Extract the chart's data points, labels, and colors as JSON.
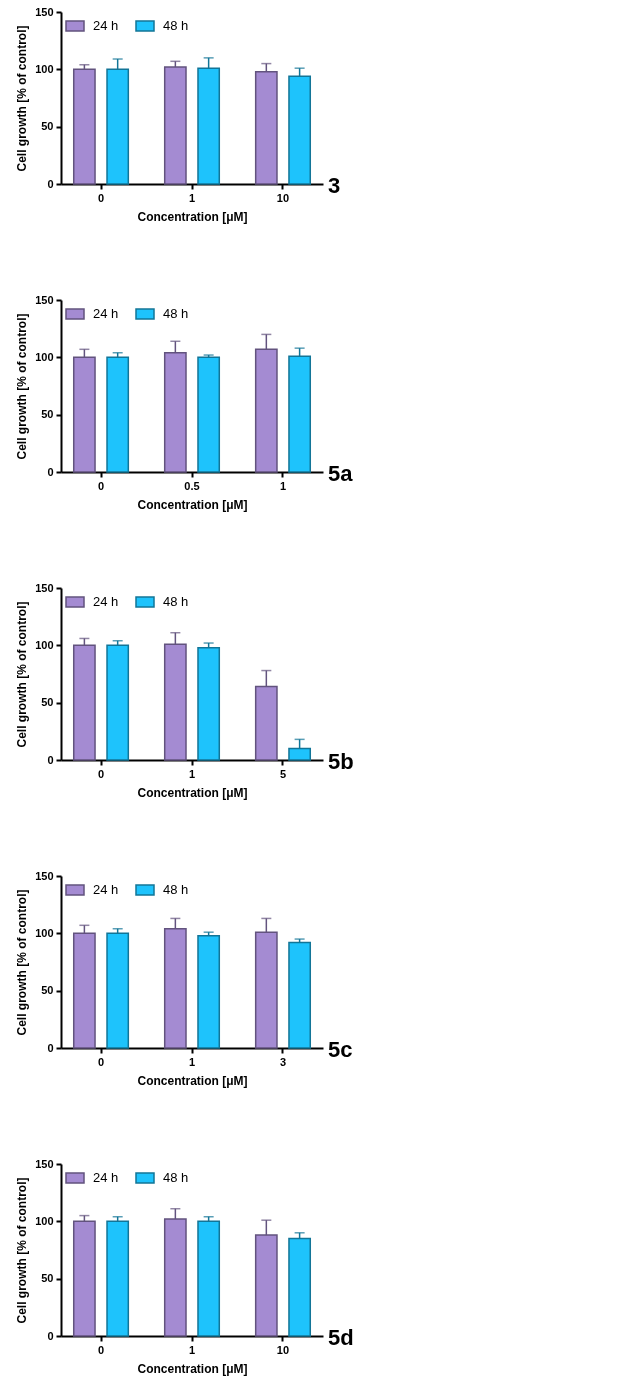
{
  "chart_data": [
    {
      "type": "bar",
      "categories": [
        "0",
        "1",
        "10"
      ],
      "xlabel": "Concentration [μM]",
      "ylabel": "Cell growth [% of control]",
      "ylim": [
        0,
        150
      ],
      "yticks": [
        0,
        50,
        100,
        150
      ],
      "legend": "top left",
      "annotations": [
        "3"
      ],
      "series": [
        {
          "name": "24 h",
          "color": "#a48bd2",
          "values": [
            100,
            102,
            98
          ],
          "errors": [
            [
              100,
              104
            ],
            [
              102,
              107
            ],
            [
              98,
              105
            ]
          ]
        },
        {
          "name": "48 h",
          "color": "#1ec3fc",
          "values": [
            100,
            101,
            94
          ],
          "errors": [
            [
              100,
              109
            ],
            [
              101,
              110
            ],
            [
              94,
              101
            ]
          ]
        }
      ]
    },
    {
      "type": "bar",
      "categories": [
        "0",
        "0.5",
        "1"
      ],
      "xlabel": "Concentration [μM]",
      "ylabel": "Cell growth [% of control]",
      "ylim": [
        0,
        150
      ],
      "yticks": [
        0,
        50,
        100,
        150
      ],
      "legend": "top left",
      "annotations": [
        "5a"
      ],
      "series": [
        {
          "name": "24 h",
          "color": "#a48bd2",
          "values": [
            100,
            104,
            107
          ],
          "errors": [
            [
              100,
              107
            ],
            [
              104,
              114
            ],
            [
              107,
              120
            ]
          ]
        },
        {
          "name": "48 h",
          "color": "#1ec3fc",
          "values": [
            100,
            100,
            101
          ],
          "errors": [
            [
              100,
              104
            ],
            [
              100,
              102
            ],
            [
              101,
              108
            ]
          ]
        }
      ]
    },
    {
      "type": "bar",
      "categories": [
        "0",
        "1",
        "5"
      ],
      "xlabel": "Concentration [μM]",
      "ylabel": "Cell growth [% of control]",
      "ylim": [
        0,
        150
      ],
      "yticks": [
        0,
        50,
        100,
        150
      ],
      "legend": "top left",
      "annotations": [
        "5b"
      ],
      "series": [
        {
          "name": "24 h",
          "color": "#a48bd2",
          "values": [
            100,
            101,
            64
          ],
          "errors": [
            [
              100,
              106
            ],
            [
              101,
              111
            ],
            [
              64,
              78
            ]
          ]
        },
        {
          "name": "48 h",
          "color": "#1ec3fc",
          "values": [
            100,
            98,
            10
          ],
          "errors": [
            [
              100,
              104
            ],
            [
              98,
              102
            ],
            [
              10,
              18
            ]
          ]
        }
      ]
    },
    {
      "type": "bar",
      "categories": [
        "0",
        "1",
        "3"
      ],
      "xlabel": "Concentration [μM]",
      "ylabel": "Cell growth [% of control]",
      "ylim": [
        0,
        150
      ],
      "yticks": [
        0,
        50,
        100,
        150
      ],
      "legend": "top left",
      "annotations": [
        "5c"
      ],
      "series": [
        {
          "name": "24 h",
          "color": "#a48bd2",
          "values": [
            100,
            104,
            101
          ],
          "errors": [
            [
              100,
              107
            ],
            [
              104,
              113
            ],
            [
              101,
              113
            ]
          ]
        },
        {
          "name": "48 h",
          "color": "#1ec3fc",
          "values": [
            100,
            98,
            92
          ],
          "errors": [
            [
              100,
              104
            ],
            [
              98,
              101
            ],
            [
              92,
              95
            ]
          ]
        }
      ]
    },
    {
      "type": "bar",
      "categories": [
        "0",
        "1",
        "10"
      ],
      "xlabel": "Concentration [μM]",
      "ylabel": "Cell growth [% of control]",
      "ylim": [
        0,
        150
      ],
      "yticks": [
        0,
        50,
        100,
        150
      ],
      "legend": "top left",
      "annotations": [
        "5d"
      ],
      "series": [
        {
          "name": "24 h",
          "color": "#a48bd2",
          "values": [
            100,
            102,
            88
          ],
          "errors": [
            [
              100,
              105
            ],
            [
              102,
              111
            ],
            [
              88,
              101
            ]
          ]
        },
        {
          "name": "48 h",
          "color": "#1ec3fc",
          "values": [
            100,
            100,
            85
          ],
          "errors": [
            [
              100,
              104
            ],
            [
              100,
              104
            ],
            [
              85,
              90
            ]
          ]
        }
      ]
    }
  ]
}
